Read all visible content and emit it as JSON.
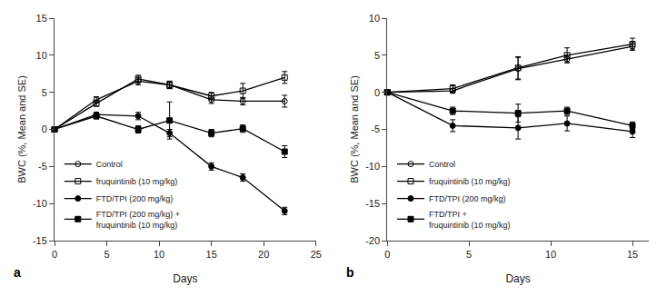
{
  "chart_data": [
    {
      "type": "line",
      "xlabel": "Days",
      "ylabel": "BWC (%, Mean and SE)",
      "annotations": [
        "a"
      ],
      "x": [
        0,
        4,
        8,
        11,
        15,
        18,
        22
      ],
      "series": [
        {
          "name": "Control",
          "color": "#000000",
          "marker": "circle-open",
          "values": [
            0,
            4.0,
            6.5,
            6.0,
            4.0,
            3.8,
            3.8
          ],
          "yerr": [
            0,
            0.4,
            0.5,
            0.5,
            0.5,
            0.5,
            0.8
          ]
        },
        {
          "name": "fruquintinib (10 mg/kg)",
          "color": "#000000",
          "marker": "square-open",
          "values": [
            0,
            3.5,
            6.8,
            6.0,
            4.5,
            5.2,
            7.0
          ],
          "yerr": [
            0,
            0.4,
            0.5,
            0.5,
            0.5,
            1.0,
            0.8
          ]
        },
        {
          "name": "FTD/TPI (200 mg/kg)",
          "color": "#000000",
          "marker": "circle",
          "values": [
            0,
            2.0,
            1.8,
            -0.5,
            -5.0,
            -6.5,
            -11.0
          ],
          "yerr": [
            0,
            0.3,
            0.5,
            0.5,
            0.5,
            0.5,
            0.5
          ]
        },
        {
          "name": "FTD/TPI (200 mg/kg) +\nfruquintinib (10 mg/kg)",
          "color": "#000000",
          "marker": "square",
          "values": [
            0,
            1.8,
            0.0,
            1.2,
            -0.5,
            0.1,
            -3.0
          ],
          "yerr": [
            0,
            0.4,
            0.5,
            2.5,
            0.5,
            0.5,
            0.8
          ]
        }
      ],
      "xlim": [
        0,
        25
      ],
      "ylim": [
        -15,
        15
      ],
      "xticks": [
        0,
        5,
        10,
        15,
        20,
        25
      ],
      "yticks": [
        -15,
        -10,
        -5,
        0,
        5,
        10,
        15
      ],
      "grid": false,
      "legend": "lower left"
    },
    {
      "type": "line",
      "xlabel": "Days",
      "ylabel": "BWC (%, Mean and SE)",
      "annotations": [
        "b"
      ],
      "x": [
        0,
        4,
        8,
        11,
        15
      ],
      "series": [
        {
          "name": "Control",
          "color": "#000000",
          "marker": "circle-open",
          "values": [
            0,
            0.2,
            3.2,
            4.5,
            6.2
          ],
          "yerr": [
            0,
            0.3,
            1.5,
            0.5,
            0.5
          ]
        },
        {
          "name": "fruquintinib (10 mg/kg)",
          "color": "#000000",
          "marker": "square-open",
          "values": [
            0,
            0.5,
            3.3,
            5.0,
            6.5
          ],
          "yerr": [
            0,
            0.5,
            1.5,
            1.0,
            0.8
          ]
        },
        {
          "name": "FTD/TPI (200 mg/kg)",
          "color": "#000000",
          "marker": "circle",
          "values": [
            0,
            -4.5,
            -4.8,
            -4.2,
            -5.3
          ],
          "yerr": [
            0,
            0.8,
            1.5,
            1.0,
            0.8
          ]
        },
        {
          "name": "FTD/TPI +\nfruquintinib (10 mg/kg)",
          "color": "#000000",
          "marker": "square",
          "values": [
            0,
            -2.5,
            -2.8,
            -2.5,
            -4.5
          ],
          "yerr": [
            0,
            0.5,
            1.2,
            0.5,
            0.5
          ]
        }
      ],
      "xlim": [
        0,
        16
      ],
      "ylim": [
        -20,
        10
      ],
      "xticks": [
        0,
        5,
        10,
        15
      ],
      "yticks": [
        -20,
        -15,
        -10,
        -5,
        0,
        5,
        10
      ],
      "grid": false,
      "legend": "lower left"
    }
  ]
}
